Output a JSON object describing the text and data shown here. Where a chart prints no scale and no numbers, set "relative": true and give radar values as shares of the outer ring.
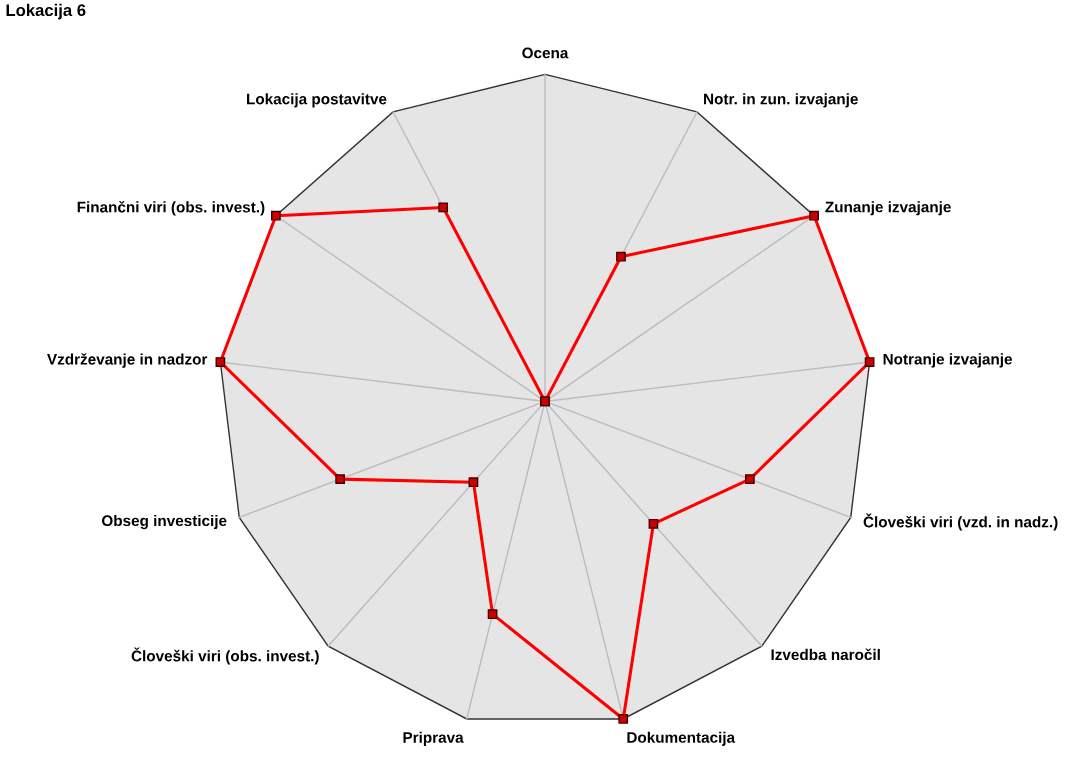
{
  "chart_data": {
    "type": "radar",
    "title": "Lokacija 6",
    "relative": true,
    "categories": [
      "Ocena",
      "Notr. in zun. izvajanje",
      "Zunanje izvajanje",
      "Notranje izvajanje",
      "Človeški viri (vzd. in nadz.)",
      "Izvedba naročil",
      "Dokumentacija",
      "Priprava",
      "Človeški viri (obs. invest.)",
      "Obseg investicije",
      "Vzdrževanje in nadzor",
      "Finančni viri (obs. invest.)",
      "Lokacija postavitve"
    ],
    "series": [
      {
        "color": "#ff0000",
        "values": [
          0,
          0.5,
          1,
          1,
          0.67,
          0.5,
          1,
          0.67,
          0.33,
          0.67,
          1,
          1,
          0.67
        ]
      }
    ],
    "marker": "square",
    "grid": true,
    "legend": false
  }
}
